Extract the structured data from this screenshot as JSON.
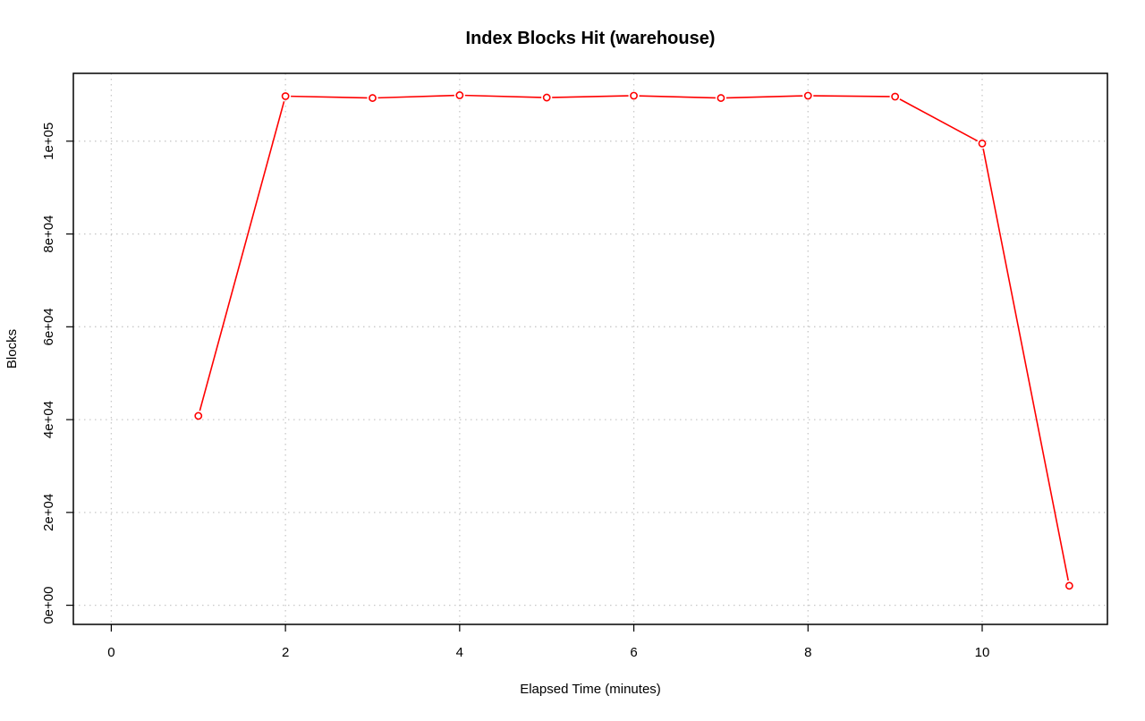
{
  "chart_data": {
    "type": "line",
    "title": "Index Blocks Hit (warehouse)",
    "xlabel": "Elapsed Time (minutes)",
    "ylabel": "Blocks",
    "xlim": [
      0,
      11
    ],
    "ylim": [
      0,
      110000
    ],
    "x_ticks": [
      0,
      2,
      4,
      6,
      8,
      10
    ],
    "x_tick_labels": [
      "0",
      "2",
      "4",
      "6",
      "8",
      "10"
    ],
    "y_ticks": [
      0,
      20000,
      40000,
      60000,
      80000,
      100000
    ],
    "y_tick_labels": [
      "0e+00",
      "2e+04",
      "4e+04",
      "6e+04",
      "8e+04",
      "1e+05"
    ],
    "grid": true,
    "legend": "none",
    "series": [
      {
        "color": "#ff0000",
        "marker": "open-circle",
        "x": [
          1,
          2,
          3,
          4,
          5,
          6,
          7,
          8,
          9,
          10,
          11
        ],
        "y": [
          40800,
          109700,
          109300,
          109900,
          109400,
          109800,
          109300,
          109800,
          109600,
          99500,
          4200
        ]
      }
    ]
  }
}
